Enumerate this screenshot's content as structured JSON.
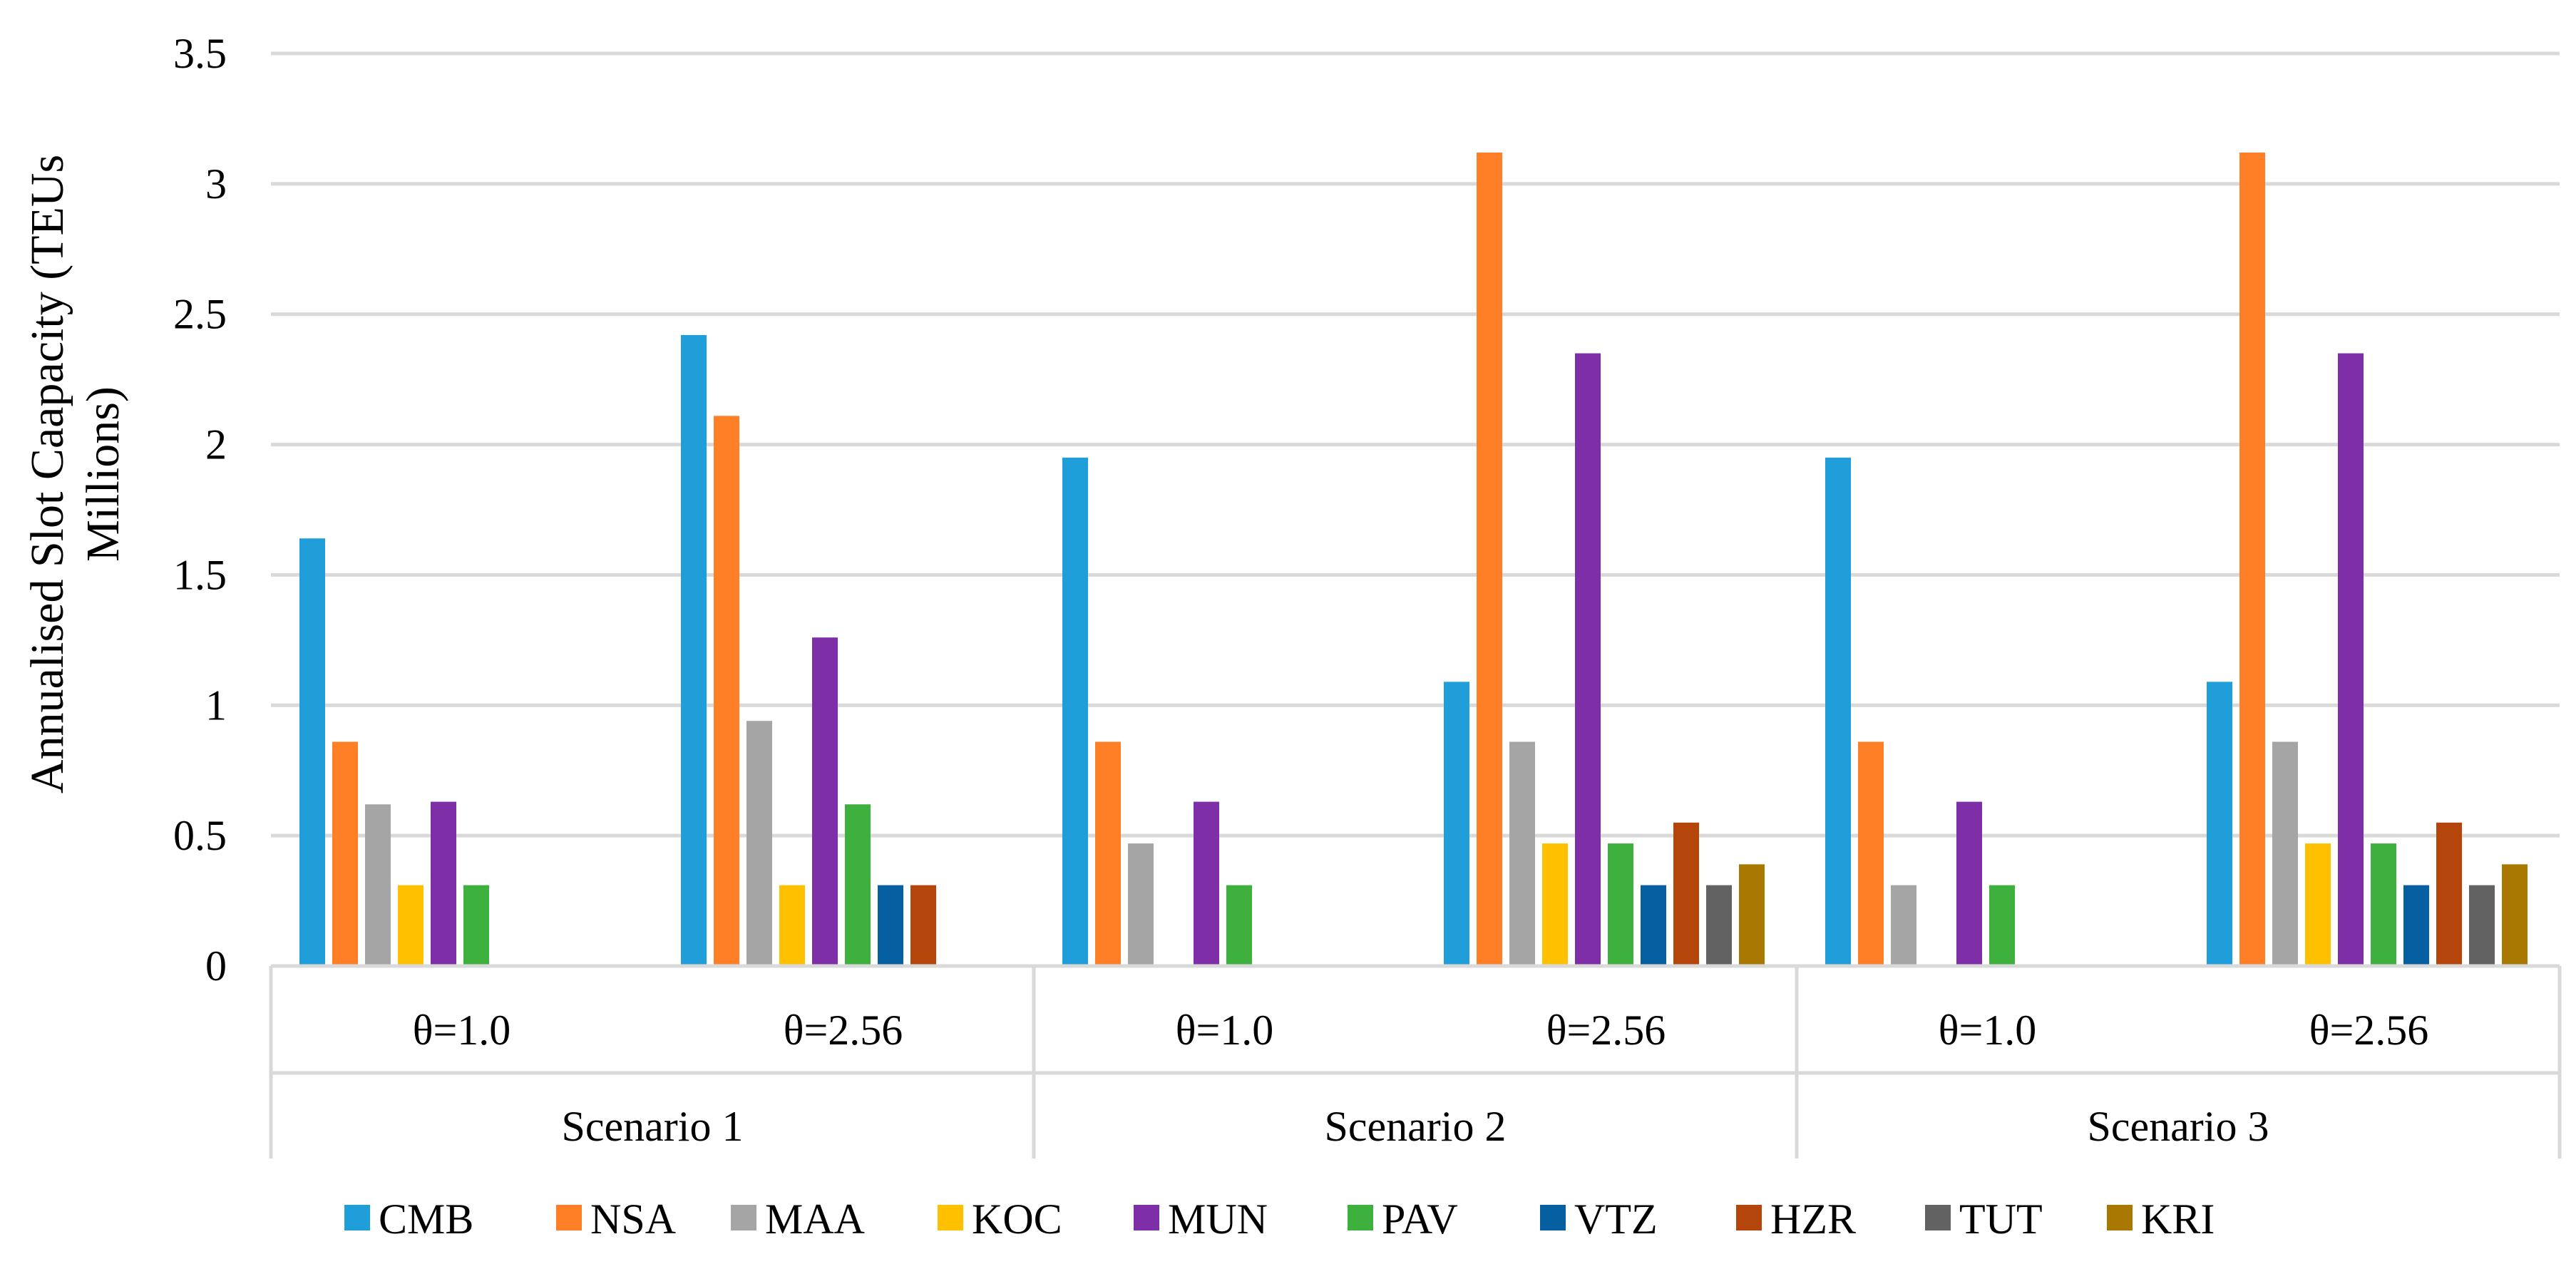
{
  "chart_data": {
    "type": "bar",
    "title": "",
    "xlabel": "",
    "ylabel": [
      "Annualised Slot Caapacity (TEUs",
      "Millions)"
    ],
    "ylim": [
      0,
      3.5
    ],
    "yticks": [
      0,
      0.5,
      1,
      1.5,
      2,
      2.5,
      3,
      3.5
    ],
    "ytick_labels": [
      "0",
      "0.5",
      "1",
      "1.5",
      "2",
      "2.5",
      "3",
      "3.5"
    ],
    "grid": true,
    "legend_position": "bottom",
    "groups": [
      "Scenario 1",
      "Scenario 2",
      "Scenario 3"
    ],
    "categories": [
      "θ=1.0",
      "θ=2.56",
      "θ=1.0",
      "θ=2.56",
      "θ=1.0",
      "θ=2.56"
    ],
    "series": [
      {
        "name": "CMB",
        "color": "#1F9ED9",
        "values": [
          1.64,
          2.42,
          1.95,
          1.09,
          1.95,
          1.09
        ]
      },
      {
        "name": "NSA",
        "color": "#FF7F27",
        "values": [
          0.86,
          2.11,
          0.86,
          3.12,
          0.86,
          3.12
        ]
      },
      {
        "name": "MAA",
        "color": "#A5A5A5",
        "values": [
          0.62,
          0.94,
          0.47,
          0.86,
          0.31,
          0.86
        ]
      },
      {
        "name": "KOC",
        "color": "#FFC000",
        "values": [
          0.31,
          0.31,
          0,
          0.47,
          0,
          0.47
        ]
      },
      {
        "name": "MUN",
        "color": "#7E2FA8",
        "values": [
          0.63,
          1.26,
          0.63,
          2.35,
          0.63,
          2.35
        ]
      },
      {
        "name": "PAV",
        "color": "#3DB03D",
        "values": [
          0.31,
          0.62,
          0.31,
          0.47,
          0.31,
          0.47
        ]
      },
      {
        "name": "VTZ",
        "color": "#065FA0",
        "values": [
          0,
          0.31,
          0,
          0.31,
          0,
          0.31
        ]
      },
      {
        "name": "HZR",
        "color": "#B5460B",
        "values": [
          0,
          0.31,
          0,
          0.55,
          0,
          0.55
        ]
      },
      {
        "name": "TUT",
        "color": "#626262",
        "values": [
          0,
          0,
          0,
          0.31,
          0,
          0.31
        ]
      },
      {
        "name": "KRI",
        "color": "#A87800",
        "values": [
          0,
          0,
          0,
          0.39,
          0,
          0.39
        ]
      }
    ]
  }
}
